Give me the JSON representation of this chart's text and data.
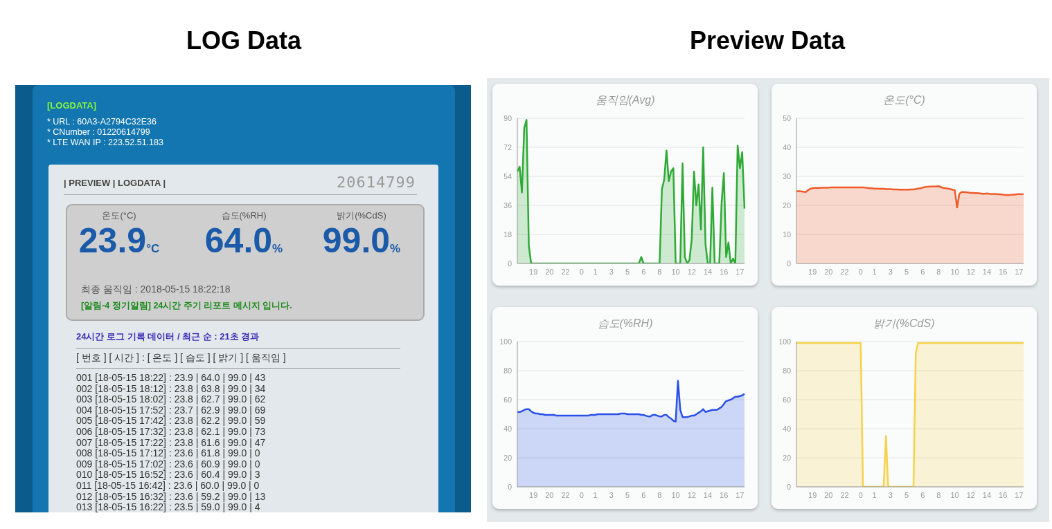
{
  "chart_data": [
    {
      "type": "other",
      "title": "LOG Data",
      "annotations": [
        "[LOGDATA]",
        "* URL : 60A3-A2794C32E36",
        "* CNumber : 01220614799",
        "* LTE WAN IP : 223.52.51.183",
        "| PREVIEW | LOGDATA |",
        "20614799",
        "온도(°C)",
        "습도(%RH)",
        "밝기(%CdS)",
        "23.9",
        "64.0",
        "99.0",
        "°C",
        "%",
        "%",
        "최종 움직임 : 2018-05-15 18:22:18",
        "[알림-4 정기알림] 24시간 주기 리포트 메시지 입니다.",
        "24시간 로그 기록 데이터 / 최근 순 : 21초 경과",
        "[ 번호 ] [ 시간 ] : [ 온도 ] [ 습도 ] [ 밝기 ] [ 움직임 ]",
        "001 [18-05-15 18:22] : 23.9 | 64.0 | 99.0 | 43",
        "002 [18-05-15 18:12] : 23.8 | 63.8 | 99.0 | 34",
        "003 [18-05-15 18:02] : 23.8 | 62.7 | 99.0 | 62",
        "004 [18-05-15 17:52] : 23.7 | 62.9 | 99.0 | 69",
        "005 [18-05-15 17:42] : 23.8 | 62.2 | 99.0 | 59",
        "006 [18-05-15 17:32] : 23.8 | 62.1 | 99.0 | 73",
        "007 [18-05-15 17:22] : 23.8 | 61.6 | 99.0 | 47",
        "008 [18-05-15 17:12] : 23.6 | 61.8 | 99.0 | 0",
        "009 [18-05-15 17:02] : 23.6 | 60.9 | 99.0 | 0",
        "010 [18-05-15 16:52] : 23.6 | 60.4 | 99.0 | 3",
        "011 [18-05-15 16:42] : 23.6 | 60.0 | 99.0 | 0",
        "012 [18-05-15 16:32] : 23.6 | 59.2 | 99.0 | 13",
        "013 [18-05-15 16:22] : 23.5 | 59.0 | 99.0 | 4"
      ]
    },
    {
      "type": "other",
      "title": "Preview Data"
    },
    {
      "type": "area",
      "title": "움직임(Avg)",
      "color": "#2eaa35",
      "ylim": [
        0,
        90
      ],
      "yticks": [
        0,
        18,
        36,
        54,
        72,
        90
      ],
      "grid": "y",
      "categories": [
        null,
        null,
        null,
        null,
        null,
        null,
        null,
        "19",
        null,
        null,
        null,
        null,
        null,
        null,
        "20",
        null,
        null,
        null,
        null,
        null,
        null,
        "22",
        null,
        null,
        null,
        null,
        null,
        null,
        "0",
        null,
        null,
        null,
        null,
        null,
        "1",
        null,
        null,
        null,
        null,
        null,
        null,
        "3",
        null,
        null,
        null,
        null,
        null,
        null,
        "5",
        null,
        null,
        null,
        null,
        null,
        null,
        "6",
        null,
        null,
        null,
        null,
        null,
        null,
        "8",
        null,
        null,
        null,
        null,
        null,
        null,
        "10",
        null,
        null,
        null,
        null,
        null,
        null,
        "12",
        null,
        null,
        null,
        null,
        null,
        null,
        "14",
        null,
        null,
        null,
        null,
        null,
        null,
        "16",
        null,
        null,
        null,
        null,
        null,
        null,
        "17",
        null,
        null
      ],
      "values": [
        57,
        60,
        44,
        84,
        89,
        11,
        0,
        0,
        0,
        0,
        0,
        0,
        0,
        0,
        0,
        0,
        0,
        0,
        0,
        0,
        0,
        0,
        0,
        0,
        0,
        0,
        0,
        0,
        0,
        0,
        0,
        0,
        0,
        0,
        0,
        0,
        0,
        0,
        0,
        0,
        0,
        0,
        0,
        0,
        0,
        0,
        0,
        0,
        0,
        0,
        0,
        0,
        0,
        0,
        4,
        0,
        0,
        0,
        0,
        0,
        0,
        0,
        0,
        46,
        52,
        70,
        51,
        57,
        59,
        0,
        0,
        0,
        62,
        4,
        0,
        2,
        15,
        57,
        36,
        49,
        21,
        72,
        12,
        0,
        0,
        47,
        0,
        0,
        0,
        37,
        56,
        4,
        13,
        0,
        3,
        0,
        73,
        59,
        69,
        34
      ]
    },
    {
      "type": "area",
      "title": "온도(°C)",
      "color": "#f05a28",
      "ylim": [
        0,
        50
      ],
      "yticks": [
        0,
        10,
        20,
        30,
        40,
        50
      ],
      "grid": "y",
      "categories": [
        null,
        null,
        null,
        null,
        null,
        null,
        null,
        "19",
        null,
        null,
        null,
        null,
        null,
        null,
        "20",
        null,
        null,
        null,
        null,
        null,
        null,
        "22",
        null,
        null,
        null,
        null,
        null,
        null,
        "0",
        null,
        null,
        null,
        null,
        null,
        "1",
        null,
        null,
        null,
        null,
        null,
        null,
        "3",
        null,
        null,
        null,
        null,
        null,
        null,
        "5",
        null,
        null,
        null,
        null,
        null,
        null,
        "6",
        null,
        null,
        null,
        null,
        null,
        null,
        "8",
        null,
        null,
        null,
        null,
        null,
        null,
        "10",
        null,
        null,
        null,
        null,
        null,
        null,
        "12",
        null,
        null,
        null,
        null,
        null,
        null,
        "14",
        null,
        null,
        null,
        null,
        null,
        null,
        "16",
        null,
        null,
        null,
        null,
        null,
        null,
        "17",
        null,
        null
      ],
      "values": [
        24.9,
        24.9,
        24.8,
        24.7,
        24.6,
        25.2,
        25.7,
        25.9,
        26.0,
        26.0,
        26.0,
        26.1,
        26.1,
        26.1,
        26.1,
        26.2,
        26.2,
        26.2,
        26.2,
        26.2,
        26.2,
        26.2,
        26.2,
        26.2,
        26.2,
        26.2,
        26.2,
        26.2,
        26.2,
        26.2,
        26.1,
        26.0,
        25.9,
        25.9,
        25.8,
        25.8,
        25.7,
        25.7,
        25.7,
        25.6,
        25.6,
        25.6,
        25.5,
        25.5,
        25.5,
        25.4,
        25.4,
        25.4,
        25.4,
        25.4,
        25.5,
        25.5,
        25.6,
        25.8,
        25.9,
        26.1,
        26.3,
        26.4,
        26.5,
        26.5,
        26.5,
        26.5,
        26.6,
        26.3,
        26.0,
        25.9,
        25.8,
        25.6,
        25.4,
        25.2,
        19.3,
        24.0,
        24.6,
        24.6,
        24.5,
        24.4,
        24.3,
        24.3,
        24.2,
        24.2,
        24.1,
        24.0,
        24.0,
        24.1,
        24.0,
        23.9,
        23.9,
        23.9,
        23.8,
        23.8,
        23.7,
        23.6,
        23.6,
        23.6,
        23.7,
        23.7,
        23.8,
        23.9,
        23.8,
        23.9
      ]
    },
    {
      "type": "area",
      "title": "습도(%RH)",
      "color": "#2950e8",
      "ylim": [
        0,
        100
      ],
      "yticks": [
        0,
        20,
        40,
        60,
        80,
        100
      ],
      "grid": "y",
      "categories": [
        null,
        null,
        null,
        null,
        null,
        null,
        null,
        "19",
        null,
        null,
        null,
        null,
        null,
        null,
        "20",
        null,
        null,
        null,
        null,
        null,
        null,
        "22",
        null,
        null,
        null,
        null,
        null,
        null,
        "0",
        null,
        null,
        null,
        null,
        null,
        "1",
        null,
        null,
        null,
        null,
        null,
        null,
        "3",
        null,
        null,
        null,
        null,
        null,
        null,
        "5",
        null,
        null,
        null,
        null,
        null,
        null,
        "6",
        null,
        null,
        null,
        null,
        null,
        null,
        "8",
        null,
        null,
        null,
        null,
        null,
        null,
        "10",
        null,
        null,
        null,
        null,
        null,
        null,
        "12",
        null,
        null,
        null,
        null,
        null,
        null,
        "14",
        null,
        null,
        null,
        null,
        null,
        null,
        "16",
        null,
        null,
        null,
        null,
        null,
        null,
        "17",
        null,
        null
      ],
      "values": [
        51.5,
        51.5,
        52,
        53,
        53.5,
        53.5,
        52,
        51,
        50.5,
        50.5,
        50,
        50,
        49.5,
        49.5,
        49.5,
        49.5,
        49.5,
        49,
        49,
        49,
        49,
        49,
        49,
        49,
        49,
        49,
        49,
        49,
        49,
        49,
        49,
        49,
        49.5,
        49.5,
        49.5,
        50,
        50,
        50,
        50,
        50,
        50,
        50,
        50,
        50,
        50,
        50.5,
        50.5,
        50.5,
        50,
        50,
        50,
        50,
        50,
        50,
        49.5,
        49.5,
        49,
        48.5,
        48.5,
        49.5,
        49.5,
        49,
        48.5,
        48.5,
        49.5,
        49.5,
        48,
        47,
        45.5,
        45,
        73,
        53,
        48,
        48,
        48,
        48.5,
        49,
        49,
        50,
        51,
        52,
        53.5,
        51.5,
        52,
        52.5,
        53,
        53,
        53,
        54,
        55,
        57,
        59,
        59.5,
        60,
        61,
        62,
        62,
        62.5,
        63,
        64
      ]
    },
    {
      "type": "area",
      "title": "밝기(%CdS)",
      "color": "#f5d24a",
      "ylim": [
        0,
        100
      ],
      "yticks": [
        0,
        20,
        40,
        60,
        80,
        100
      ],
      "grid": "y",
      "categories": [
        null,
        null,
        null,
        null,
        null,
        null,
        null,
        "19",
        null,
        null,
        null,
        null,
        null,
        null,
        "20",
        null,
        null,
        null,
        null,
        null,
        null,
        "22",
        null,
        null,
        null,
        null,
        null,
        null,
        "0",
        null,
        null,
        null,
        null,
        null,
        "1",
        null,
        null,
        null,
        null,
        null,
        null,
        "3",
        null,
        null,
        null,
        null,
        null,
        null,
        "5",
        null,
        null,
        null,
        null,
        null,
        null,
        "6",
        null,
        null,
        null,
        null,
        null,
        null,
        "8",
        null,
        null,
        null,
        null,
        null,
        null,
        "10",
        null,
        null,
        null,
        null,
        null,
        null,
        "12",
        null,
        null,
        null,
        null,
        null,
        null,
        "14",
        null,
        null,
        null,
        null,
        null,
        null,
        "16",
        null,
        null,
        null,
        null,
        null,
        null,
        "17",
        null,
        null
      ],
      "values": [
        99,
        99,
        99,
        99,
        99,
        99,
        99,
        99,
        99,
        99,
        99,
        99,
        99,
        99,
        99,
        99,
        99,
        99,
        99,
        99,
        99,
        99,
        99,
        99,
        99,
        99,
        99,
        99,
        99,
        0,
        0,
        0,
        0,
        0,
        0,
        0,
        0,
        0,
        0,
        35,
        0,
        0,
        0,
        0,
        0,
        0,
        0,
        0,
        0,
        0,
        0,
        0,
        92,
        99,
        99,
        99,
        99,
        99,
        99,
        99,
        99,
        99,
        99,
        99,
        99,
        99,
        99,
        99,
        99,
        99,
        99,
        99,
        99,
        99,
        99,
        99,
        99,
        99,
        99,
        99,
        99,
        99,
        99,
        99,
        99,
        99,
        99,
        99,
        99,
        99,
        99,
        99,
        99,
        99,
        99,
        99,
        99,
        99,
        99,
        99
      ]
    }
  ]
}
